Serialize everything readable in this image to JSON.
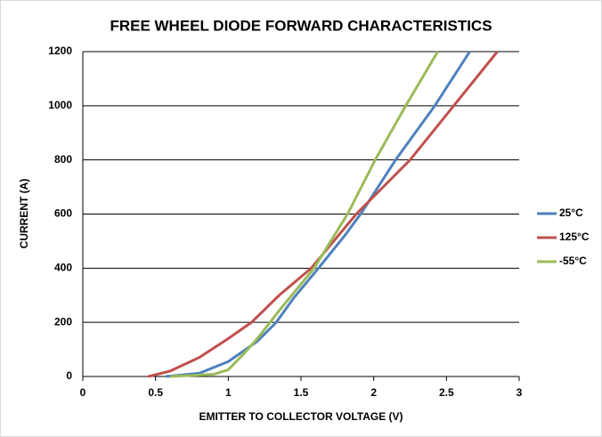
{
  "chart_data": {
    "type": "line",
    "title": "FREE WHEEL DIODE FORWARD CHARACTERISTICS",
    "xlabel": "EMITTER TO COLLECTOR VOLTAGE (V)",
    "ylabel": "CURRENT (A)",
    "xlim": [
      0,
      3
    ],
    "xticks": [
      0,
      0.5,
      1,
      1.5,
      2,
      2.5,
      3
    ],
    "ylim": [
      0,
      1200
    ],
    "yticks": [
      0,
      200,
      400,
      600,
      800,
      1000,
      1200
    ],
    "grid": true,
    "legend": "right",
    "series": [
      {
        "name": "25°C",
        "color": "#4f81bd",
        "x": [
          0.57,
          0.8,
          1.0,
          1.2,
          1.33,
          1.45,
          1.62,
          1.8,
          1.91,
          2.15,
          2.42,
          2.66
        ],
        "values": [
          0,
          12,
          55,
          130,
          200,
          290,
          400,
          520,
          600,
          800,
          1000,
          1200
        ]
      },
      {
        "name": "125°C",
        "color": "#c0504d",
        "x": [
          0.45,
          0.6,
          0.8,
          1.0,
          1.16,
          1.35,
          1.57,
          1.88,
          2.25,
          2.55,
          2.85
        ],
        "values": [
          0,
          20,
          70,
          140,
          200,
          300,
          400,
          600,
          800,
          1000,
          1200
        ]
      },
      {
        "name": "-55°C",
        "color": "#9bbb59",
        "x": [
          0.6,
          0.9,
          1.0,
          1.1,
          1.2,
          1.36,
          1.59,
          1.82,
          2.01,
          2.22,
          2.44
        ],
        "values": [
          0,
          8,
          25,
          80,
          140,
          250,
          400,
          600,
          800,
          1000,
          1200
        ]
      }
    ]
  }
}
